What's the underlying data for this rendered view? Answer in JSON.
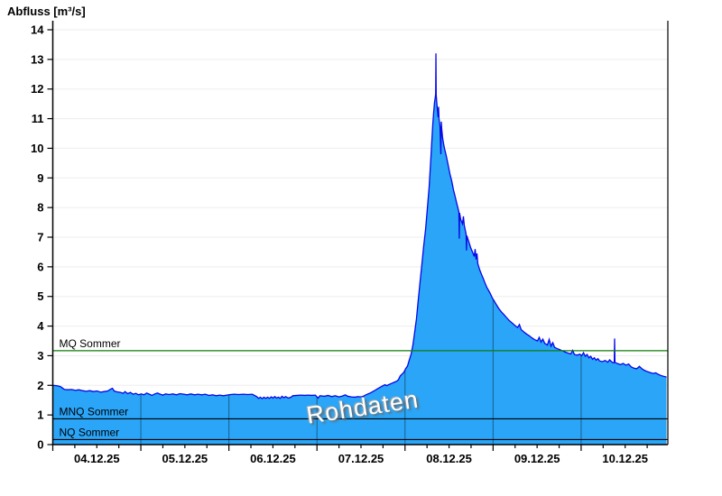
{
  "header": {
    "title": "Abfluss [m³/s]"
  },
  "watermark": {
    "text": "Rohdaten"
  },
  "colors": {
    "area_fill": "#2aa5f7",
    "area_line": "#0707e8",
    "grid_h": "#ededed",
    "grid_day_over_area": "rgba(0,0,0,0.42)",
    "axis": "#000000",
    "mq_green": "#0f7d0f",
    "ref_black": "#000000",
    "background": "#ffffff"
  },
  "chart_data": {
    "type": "area",
    "title": "Abfluss [m³/s]",
    "ylabel": "Abfluss [m³/s]",
    "x_unit": "days since 04.12.25 00:00",
    "xlim": [
      0,
      6.97
    ],
    "ylim": [
      0,
      14.3
    ],
    "yticks": [
      0,
      1,
      2,
      3,
      4,
      5,
      6,
      7,
      8,
      9,
      10,
      11,
      12,
      13,
      14
    ],
    "day_labels": [
      "04.12.25",
      "05.12.25",
      "06.12.25",
      "07.12.25",
      "08.12.25",
      "09.12.25",
      "10.12.25"
    ],
    "grid": "horizontal light gridlines at each integer; vertical day separators visible over filled area only",
    "legend_position": "none",
    "reference_lines": [
      {
        "label": "MQ Sommer",
        "value": 3.17,
        "color": "#0f7d0f"
      },
      {
        "label": "MNQ Sommer",
        "value": 0.87,
        "color": "#000000"
      },
      {
        "label": "NQ Sommer",
        "value": 0.17,
        "color": "#000000"
      }
    ],
    "peak": {
      "time_day": 4.351,
      "value": 13.2
    },
    "series": [
      {
        "name": "Abfluss Rohdaten",
        "points": [
          [
            0.0,
            2.0
          ],
          [
            0.041,
            1.99
          ],
          [
            0.072,
            1.97
          ],
          [
            0.092,
            1.95
          ],
          [
            0.113,
            1.9
          ],
          [
            0.133,
            1.86
          ],
          [
            0.174,
            1.85
          ],
          [
            0.215,
            1.86
          ],
          [
            0.256,
            1.83
          ],
          [
            0.297,
            1.85
          ],
          [
            0.338,
            1.82
          ],
          [
            0.379,
            1.8
          ],
          [
            0.42,
            1.82
          ],
          [
            0.461,
            1.79
          ],
          [
            0.502,
            1.81
          ],
          [
            0.543,
            1.77
          ],
          [
            0.584,
            1.79
          ],
          [
            0.625,
            1.81
          ],
          [
            0.656,
            1.87
          ],
          [
            0.677,
            1.9
          ],
          [
            0.697,
            1.81
          ],
          [
            0.728,
            1.78
          ],
          [
            0.769,
            1.76
          ],
          [
            0.799,
            1.73
          ],
          [
            0.82,
            1.79
          ],
          [
            0.851,
            1.72
          ],
          [
            0.881,
            1.76
          ],
          [
            0.912,
            1.7
          ],
          [
            0.943,
            1.73
          ],
          [
            0.974,
            1.68
          ],
          [
            1.004,
            1.71
          ],
          [
            1.035,
            1.68
          ],
          [
            1.066,
            1.74
          ],
          [
            1.097,
            1.7
          ],
          [
            1.127,
            1.66
          ],
          [
            1.158,
            1.71
          ],
          [
            1.189,
            1.74
          ],
          [
            1.22,
            1.7
          ],
          [
            1.25,
            1.67
          ],
          [
            1.281,
            1.71
          ],
          [
            1.322,
            1.69
          ],
          [
            1.363,
            1.71
          ],
          [
            1.404,
            1.68
          ],
          [
            1.445,
            1.72
          ],
          [
            1.486,
            1.7
          ],
          [
            1.527,
            1.68
          ],
          [
            1.568,
            1.71
          ],
          [
            1.609,
            1.68
          ],
          [
            1.65,
            1.7
          ],
          [
            1.691,
            1.68
          ],
          [
            1.732,
            1.7
          ],
          [
            1.773,
            1.66
          ],
          [
            1.814,
            1.68
          ],
          [
            1.855,
            1.65
          ],
          [
            1.896,
            1.67
          ],
          [
            1.937,
            1.65
          ],
          [
            1.978,
            1.67
          ],
          [
            2.019,
            1.69
          ],
          [
            2.06,
            1.7
          ],
          [
            2.111,
            1.69
          ],
          [
            2.163,
            1.7
          ],
          [
            2.214,
            1.69
          ],
          [
            2.265,
            1.7
          ],
          [
            2.316,
            1.62
          ],
          [
            2.337,
            1.56
          ],
          [
            2.357,
            1.6
          ],
          [
            2.377,
            1.55
          ],
          [
            2.398,
            1.6
          ],
          [
            2.419,
            1.56
          ],
          [
            2.439,
            1.6
          ],
          [
            2.46,
            1.56
          ],
          [
            2.48,
            1.61
          ],
          [
            2.501,
            1.57
          ],
          [
            2.521,
            1.62
          ],
          [
            2.542,
            1.57
          ],
          [
            2.562,
            1.6
          ],
          [
            2.583,
            1.56
          ],
          [
            2.603,
            1.63
          ],
          [
            2.624,
            1.58
          ],
          [
            2.644,
            1.62
          ],
          [
            2.675,
            1.57
          ],
          [
            2.706,
            1.6
          ],
          [
            2.726,
            1.65
          ],
          [
            2.777,
            1.66
          ],
          [
            2.818,
            1.67
          ],
          [
            2.859,
            1.66
          ],
          [
            2.9,
            1.67
          ],
          [
            2.941,
            1.66
          ],
          [
            2.982,
            1.67
          ],
          [
            3.013,
            1.57
          ],
          [
            3.034,
            1.65
          ],
          [
            3.085,
            1.63
          ],
          [
            3.126,
            1.66
          ],
          [
            3.167,
            1.62
          ],
          [
            3.208,
            1.65
          ],
          [
            3.249,
            1.61
          ],
          [
            3.29,
            1.64
          ],
          [
            3.321,
            1.68
          ],
          [
            3.351,
            1.63
          ],
          [
            3.392,
            1.61
          ],
          [
            3.433,
            1.6
          ],
          [
            3.464,
            1.62
          ],
          [
            3.495,
            1.61
          ],
          [
            3.526,
            1.63
          ],
          [
            3.556,
            1.68
          ],
          [
            3.597,
            1.73
          ],
          [
            3.628,
            1.78
          ],
          [
            3.659,
            1.83
          ],
          [
            3.69,
            1.89
          ],
          [
            3.72,
            1.94
          ],
          [
            3.751,
            1.99
          ],
          [
            3.772,
            2.02
          ],
          [
            3.792,
            1.99
          ],
          [
            3.813,
            2.02
          ],
          [
            3.843,
            2.06
          ],
          [
            3.874,
            2.1
          ],
          [
            3.905,
            2.14
          ],
          [
            3.925,
            2.19
          ],
          [
            3.946,
            2.32
          ],
          [
            3.966,
            2.38
          ],
          [
            3.987,
            2.44
          ],
          [
            4.007,
            2.56
          ],
          [
            4.028,
            2.65
          ],
          [
            4.048,
            2.85
          ],
          [
            4.069,
            3.05
          ],
          [
            4.089,
            3.35
          ],
          [
            4.11,
            3.8
          ],
          [
            4.13,
            4.25
          ],
          [
            4.151,
            4.9
          ],
          [
            4.171,
            5.5
          ],
          [
            4.192,
            6.1
          ],
          [
            4.212,
            6.7
          ],
          [
            4.233,
            7.25
          ],
          [
            4.253,
            7.95
          ],
          [
            4.274,
            8.7
          ],
          [
            4.294,
            9.7
          ],
          [
            4.315,
            10.8
          ],
          [
            4.325,
            11.2
          ],
          [
            4.335,
            11.55
          ],
          [
            4.345,
            11.75
          ],
          [
            4.348,
            11.85
          ],
          [
            4.351,
            13.2
          ],
          [
            4.354,
            11.8
          ],
          [
            4.357,
            11.68
          ],
          [
            4.366,
            11.35
          ],
          [
            4.376,
            11.05
          ],
          [
            4.381,
            11.4
          ],
          [
            4.386,
            11.0
          ],
          [
            4.397,
            10.75
          ],
          [
            4.407,
            9.8
          ],
          [
            4.412,
            10.9
          ],
          [
            4.417,
            10.65
          ],
          [
            4.427,
            10.35
          ],
          [
            4.438,
            10.15
          ],
          [
            4.448,
            10.0
          ],
          [
            4.468,
            9.75
          ],
          [
            4.489,
            9.45
          ],
          [
            4.509,
            9.15
          ],
          [
            4.53,
            8.9
          ],
          [
            4.55,
            8.6
          ],
          [
            4.571,
            8.35
          ],
          [
            4.591,
            8.1
          ],
          [
            4.612,
            7.85
          ],
          [
            4.616,
            6.95
          ],
          [
            4.62,
            7.82
          ],
          [
            4.632,
            7.6
          ],
          [
            4.653,
            7.45
          ],
          [
            4.663,
            7.7
          ],
          [
            4.673,
            7.4
          ],
          [
            4.694,
            7.1
          ],
          [
            4.698,
            6.55
          ],
          [
            4.702,
            7.05
          ],
          [
            4.724,
            6.85
          ],
          [
            4.745,
            6.65
          ],
          [
            4.766,
            6.5
          ],
          [
            4.786,
            6.35
          ],
          [
            4.796,
            6.6
          ],
          [
            4.807,
            6.25
          ],
          [
            4.817,
            6.45
          ],
          [
            4.827,
            6.1
          ],
          [
            4.848,
            5.9
          ],
          [
            4.868,
            5.75
          ],
          [
            4.889,
            5.6
          ],
          [
            4.909,
            5.45
          ],
          [
            4.93,
            5.3
          ],
          [
            4.95,
            5.2
          ],
          [
            4.971,
            5.08
          ],
          [
            4.991,
            4.95
          ],
          [
            5.012,
            4.85
          ],
          [
            5.032,
            4.75
          ],
          [
            5.063,
            4.6
          ],
          [
            5.094,
            4.48
          ],
          [
            5.125,
            4.38
          ],
          [
            5.155,
            4.28
          ],
          [
            5.186,
            4.18
          ],
          [
            5.217,
            4.1
          ],
          [
            5.248,
            4.02
          ],
          [
            5.278,
            3.95
          ],
          [
            5.299,
            4.05
          ],
          [
            5.319,
            3.88
          ],
          [
            5.35,
            3.8
          ],
          [
            5.381,
            3.73
          ],
          [
            5.412,
            3.67
          ],
          [
            5.442,
            3.6
          ],
          [
            5.473,
            3.54
          ],
          [
            5.504,
            3.5
          ],
          [
            5.524,
            3.62
          ],
          [
            5.545,
            3.46
          ],
          [
            5.565,
            3.56
          ],
          [
            5.586,
            3.42
          ],
          [
            5.617,
            3.36
          ],
          [
            5.637,
            3.55
          ],
          [
            5.658,
            3.32
          ],
          [
            5.678,
            3.44
          ],
          [
            5.699,
            3.28
          ],
          [
            5.729,
            3.24
          ],
          [
            5.76,
            3.2
          ],
          [
            5.791,
            3.16
          ],
          [
            5.822,
            3.12
          ],
          [
            5.852,
            3.09
          ],
          [
            5.883,
            3.06
          ],
          [
            5.904,
            3.18
          ],
          [
            5.924,
            3.04
          ],
          [
            5.955,
            3.02
          ],
          [
            5.986,
            3.05
          ],
          [
            6.006,
            3.0
          ],
          [
            6.027,
            3.1
          ],
          [
            6.047,
            2.98
          ],
          [
            6.068,
            3.04
          ],
          [
            6.088,
            2.93
          ],
          [
            6.109,
            2.98
          ],
          [
            6.129,
            2.88
          ],
          [
            6.15,
            2.93
          ],
          [
            6.17,
            2.85
          ],
          [
            6.191,
            2.9
          ],
          [
            6.211,
            2.82
          ],
          [
            6.242,
            2.8
          ],
          [
            6.273,
            2.84
          ],
          [
            6.303,
            2.78
          ],
          [
            6.324,
            2.86
          ],
          [
            6.344,
            2.8
          ],
          [
            6.365,
            2.76
          ],
          [
            6.376,
            2.77
          ],
          [
            6.38,
            3.58
          ],
          [
            6.384,
            2.77
          ],
          [
            6.395,
            2.76
          ],
          [
            6.416,
            2.73
          ],
          [
            6.447,
            2.7
          ],
          [
            6.477,
            2.74
          ],
          [
            6.508,
            2.68
          ],
          [
            6.539,
            2.72
          ],
          [
            6.57,
            2.62
          ],
          [
            6.6,
            2.58
          ],
          [
            6.631,
            2.56
          ],
          [
            6.662,
            2.64
          ],
          [
            6.693,
            2.55
          ],
          [
            6.723,
            2.5
          ],
          [
            6.754,
            2.46
          ],
          [
            6.785,
            2.43
          ],
          [
            6.816,
            2.4
          ],
          [
            6.847,
            2.42
          ],
          [
            6.877,
            2.37
          ],
          [
            6.908,
            2.33
          ],
          [
            6.939,
            2.3
          ],
          [
            6.97,
            2.28
          ]
        ]
      }
    ]
  }
}
